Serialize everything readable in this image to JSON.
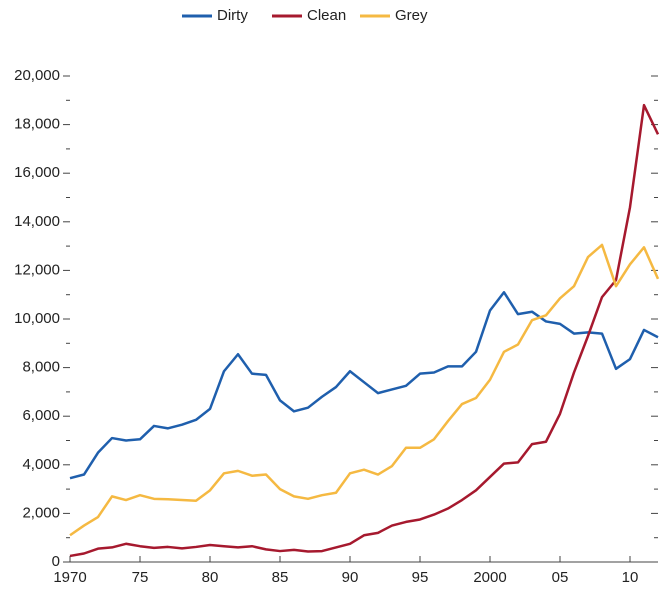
{
  "chart_data": {
    "type": "line",
    "x": [
      1970,
      1971,
      1972,
      1973,
      1974,
      1975,
      1976,
      1977,
      1978,
      1979,
      1980,
      1981,
      1982,
      1983,
      1984,
      1985,
      1986,
      1987,
      1988,
      1989,
      1990,
      1991,
      1992,
      1993,
      1994,
      1995,
      1996,
      1997,
      1998,
      1999,
      2000,
      2001,
      2002,
      2003,
      2004,
      2005,
      2006,
      2007,
      2008,
      2009,
      2010,
      2011,
      2012
    ],
    "series": [
      {
        "name": "Dirty",
        "color": "#1f5fad",
        "values": [
          3450,
          3600,
          4500,
          5100,
          5000,
          5050,
          5600,
          5500,
          5650,
          5850,
          6300,
          7850,
          8550,
          7750,
          7700,
          6650,
          6200,
          6350,
          6800,
          7200,
          7850,
          7400,
          6950,
          7100,
          7250,
          7750,
          7800,
          8050,
          8050,
          8650,
          10350,
          11100,
          10200,
          10300,
          9900,
          9800,
          9400,
          9450,
          9400,
          7950,
          8350,
          9550,
          9250
        ]
      },
      {
        "name": "Clean",
        "color": "#a6192e",
        "values": [
          250,
          350,
          550,
          600,
          750,
          650,
          580,
          620,
          560,
          620,
          700,
          650,
          600,
          650,
          520,
          450,
          500,
          430,
          450,
          600,
          750,
          1100,
          1200,
          1500,
          1650,
          1750,
          1950,
          2200,
          2550,
          2950,
          3500,
          4050,
          4100,
          4850,
          4950,
          6100,
          7800,
          9300,
          10900,
          11600,
          14600,
          18800,
          17600
        ]
      },
      {
        "name": "Grey",
        "color": "#f5b942",
        "values": [
          1100,
          1500,
          1850,
          2700,
          2550,
          2750,
          2600,
          2580,
          2550,
          2520,
          2950,
          3650,
          3750,
          3550,
          3600,
          3000,
          2700,
          2600,
          2750,
          2850,
          3650,
          3800,
          3600,
          3950,
          4700,
          4700,
          5050,
          5800,
          6500,
          6750,
          7500,
          8650,
          8950,
          9950,
          10150,
          10850,
          11350,
          12550,
          13050,
          11350,
          12250,
          12950,
          11650
        ]
      }
    ],
    "xlim": [
      1970,
      2012
    ],
    "xticks": [
      1970,
      {
        "value": 1975,
        "label": "75"
      },
      {
        "value": 1980,
        "label": "80"
      },
      {
        "value": 1985,
        "label": "85"
      },
      {
        "value": 1990,
        "label": "90"
      },
      {
        "value": 1995,
        "label": "95"
      },
      2000,
      {
        "value": 2005,
        "label": "05"
      },
      {
        "value": 2010,
        "label": "10"
      }
    ],
    "ylim": [
      0,
      20000
    ],
    "yticks": [
      0,
      {
        "value": 2000,
        "label": "2,000"
      },
      {
        "value": 4000,
        "label": "4,000"
      },
      {
        "value": 6000,
        "label": "6,000"
      },
      {
        "value": 8000,
        "label": "8,000"
      },
      {
        "value": 10000,
        "label": "10,000"
      },
      {
        "value": 12000,
        "label": "12,000"
      },
      {
        "value": 14000,
        "label": "14,000"
      },
      {
        "value": 16000,
        "label": "16,000"
      },
      {
        "value": 18000,
        "label": "18,000"
      },
      {
        "value": 20000,
        "label": "20,000"
      }
    ],
    "yminorticks": [
      1000,
      3000,
      5000,
      7000,
      9000,
      11000,
      13000,
      15000,
      17000,
      19000
    ],
    "legend": "top"
  }
}
